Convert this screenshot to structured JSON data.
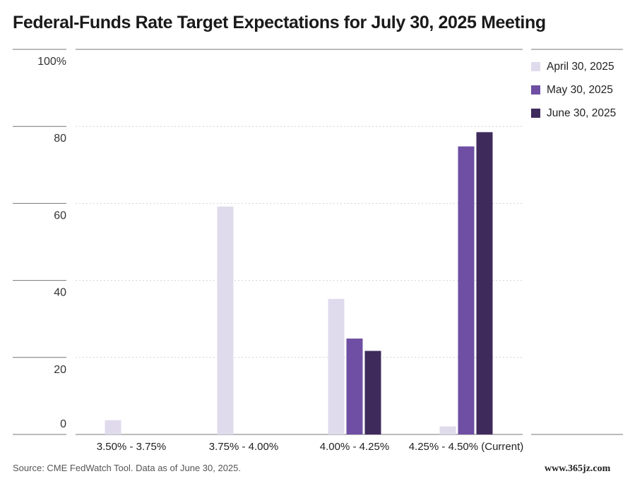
{
  "chart_data": {
    "type": "bar",
    "title": "Federal-Funds Rate Target Expectations for July 30, 2025 Meeting",
    "xlabel": "",
    "ylabel": "",
    "ylim": [
      0,
      100
    ],
    "y_ticks": [
      0,
      20,
      40,
      60,
      80,
      100
    ],
    "y_tick_labels": [
      "0",
      "20",
      "40",
      "60",
      "80",
      "100%"
    ],
    "categories": [
      "3.50% - 3.75%",
      "3.75% - 4.00%",
      "4.00% - 4.25%",
      "4.25% - 4.50% (Current)"
    ],
    "series": [
      {
        "name": "April 30, 2025",
        "color": "#e0dbec",
        "values": [
          3.7,
          59.2,
          35.2,
          2.1
        ]
      },
      {
        "name": "May 30, 2025",
        "color": "#6e4fa3",
        "values": [
          0,
          0,
          24.9,
          74.8
        ]
      },
      {
        "name": "June 30, 2025",
        "color": "#3f2a5c",
        "values": [
          0,
          0,
          21.7,
          78.5
        ]
      }
    ],
    "grid": true,
    "legend_position": "right"
  },
  "footer": {
    "source": "Source: CME FedWatch Tool. Data as of June 30, 2025.",
    "watermark": "www.365jz.com"
  }
}
